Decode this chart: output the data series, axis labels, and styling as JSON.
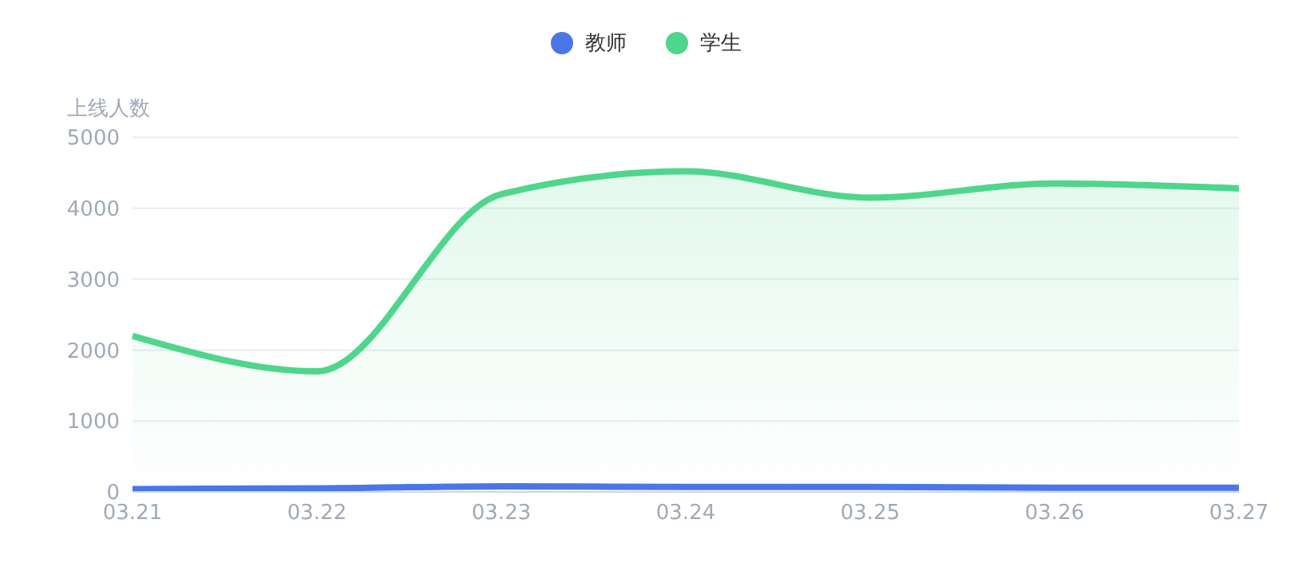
{
  "chart_data": {
    "type": "line",
    "ylabel": "上线人数",
    "categories": [
      "03.21",
      "03.22",
      "03.23",
      "03.24",
      "03.25",
      "03.26",
      "03.27"
    ],
    "series": [
      {
        "name": "教师",
        "color": "#4a76e8",
        "values": [
          40,
          50,
          80,
          70,
          70,
          60,
          60
        ]
      },
      {
        "name": "学生",
        "type": "area",
        "color": "#4fd68c",
        "values": [
          2200,
          1700,
          4200,
          4520,
          4150,
          4350,
          4280
        ]
      }
    ],
    "ylim": [
      0,
      5000
    ],
    "yticks": [
      0,
      1000,
      2000,
      3000,
      4000,
      5000
    ],
    "grid": "y",
    "legend": "top",
    "marker": "none",
    "line_style": "solid"
  }
}
